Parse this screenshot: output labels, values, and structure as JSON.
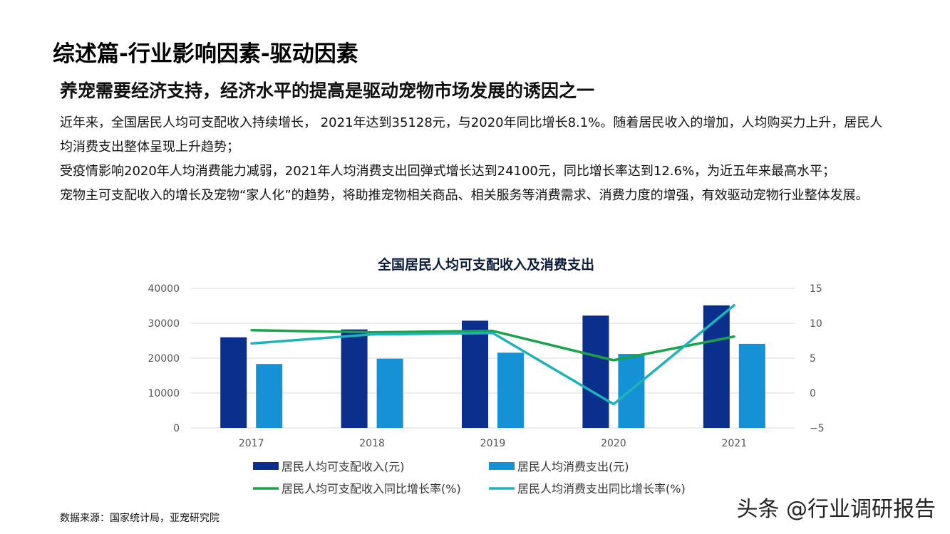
{
  "header": {
    "title": "综述篇-行业影响因素-驱动因素",
    "subtitle": "养宠需要经济支持，经济水平的提高是驱动宠物市场发展的诱因之一"
  },
  "body": {
    "paragraphs": [
      "近年来，全国居民人均可支配收入持续增长， 2021年达到35128元，与2020年同比增长8.1%。随着居民收入的增加，人均购买力上升，居民人均消费支出整体呈现上升趋势；",
      "受疫情影响2020年人均消费能力减弱，2021年人均消费支出回弹式增长达到24100元，同比增长率达到12.6%，为近五年来最高水平；",
      "宠物主可支配收入的增长及宠物“家人化”的趋势，将助推宠物相关商品、相关服务等消费需求、消费力度的增强，有效驱动宠物行业整体发展。"
    ]
  },
  "footer": {
    "source": "数据来源：国家统计局，亚宠研究院",
    "watermark": "头条 @行业调研报告"
  },
  "colors": {
    "income_bar": "#0a2f8c",
    "spend_bar": "#1591d6",
    "income_line": "#1aa34a",
    "spend_line": "#1fb3b8"
  },
  "chart_data": {
    "type": "bar",
    "title": "全国居民人均可支配收入及消费支出",
    "categories": [
      "2017",
      "2018",
      "2019",
      "2020",
      "2021"
    ],
    "y_left": {
      "ticks": [
        "40000",
        "30000",
        "20000",
        "10000",
        "0"
      ],
      "ylim": [
        0,
        40000
      ]
    },
    "y_right": {
      "ticks": [
        "15",
        "10",
        "5",
        "0",
        "−5"
      ],
      "ylim": [
        -5,
        15
      ]
    },
    "series": [
      {
        "name": "居民人均可支配收入(元)",
        "kind": "bar",
        "axis": "left",
        "values": [
          25974,
          28228,
          30733,
          32189,
          35128
        ]
      },
      {
        "name": "居民人均消费支出(元)",
        "kind": "bar",
        "axis": "left",
        "values": [
          18322,
          19853,
          21559,
          21210,
          24100
        ]
      },
      {
        "name": "居民人均可支配收入同比增长率(%)",
        "kind": "line",
        "axis": "right",
        "values": [
          9.0,
          8.7,
          8.9,
          4.7,
          8.1
        ]
      },
      {
        "name": "居民人均消费支出同比增长率(%)",
        "kind": "line",
        "axis": "right",
        "values": [
          7.1,
          8.4,
          8.6,
          -1.6,
          12.6
        ]
      }
    ],
    "grid": true,
    "legend": "bottom"
  }
}
